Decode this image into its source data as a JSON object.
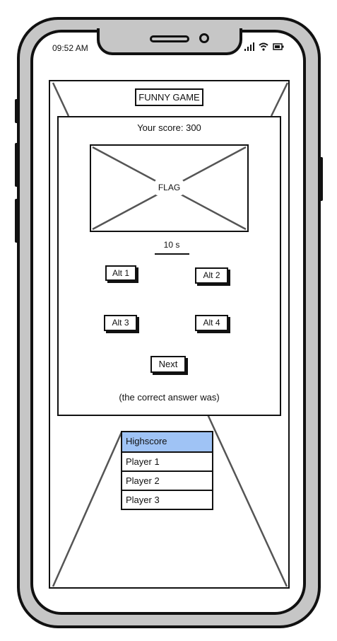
{
  "status_bar": {
    "time": "09:52 AM",
    "icons": [
      "signal-icon",
      "wifi-icon",
      "battery-icon"
    ]
  },
  "game": {
    "title": "FUNNY GAME",
    "score_text": "Your score: 300",
    "flag_placeholder": "FLAG",
    "timer": "10 s",
    "alternatives": [
      "Alt 1",
      "Alt 2",
      "Alt 3",
      "Alt 4"
    ],
    "next_label": "Next",
    "answer_text": "(the correct answer was)"
  },
  "highscore": {
    "header": "Highscore",
    "rows": [
      "Player 1",
      "Player 2",
      "Player 3"
    ],
    "header_color": "#9fc3f5"
  }
}
